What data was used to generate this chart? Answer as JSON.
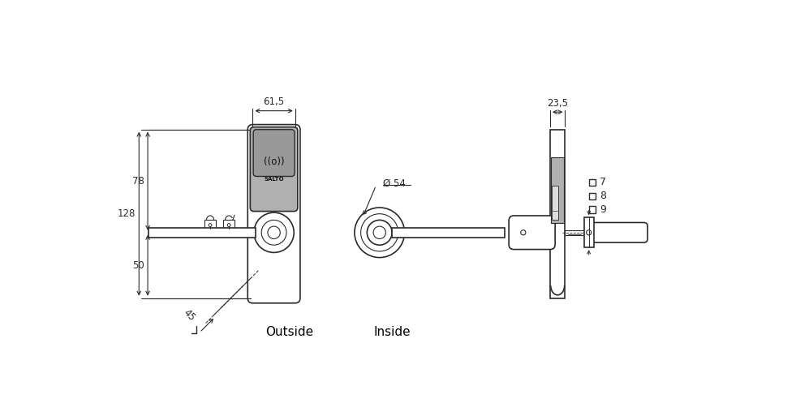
{
  "bg_color": "#ffffff",
  "line_color": "#2a2a2a",
  "gray_dark": "#999999",
  "gray_light": "#cccccc",
  "gray_reader": "#b0b0b0",
  "dim_61_5": "61,5",
  "dim_78": "78",
  "dim_128": "128",
  "dim_50": "50",
  "dim_45": "45",
  "dim_54": "Ø 54",
  "dim_23_5": "23,5",
  "label_outside": "Outside",
  "label_inside": "Inside",
  "label_7": "7",
  "label_8": "8",
  "label_9": "9",
  "label_salto": "SALTO",
  "label_wifi": "((o))"
}
